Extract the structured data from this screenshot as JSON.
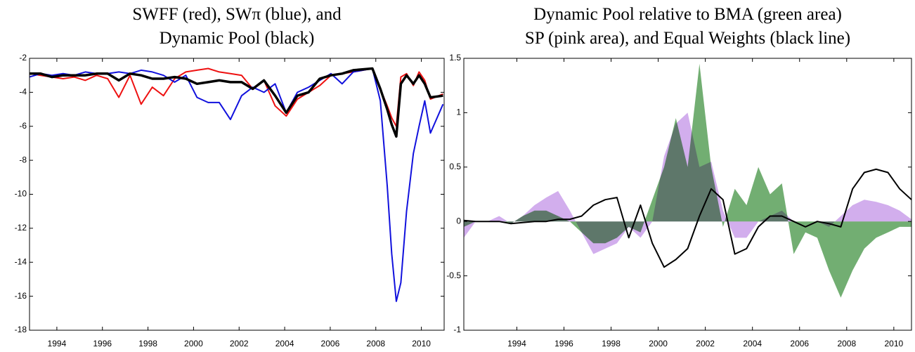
{
  "chart_data": [
    {
      "type": "line",
      "title": [
        "SWFF (red), SWπ (blue), and",
        "Dynamic Pool (black)"
      ],
      "x": [
        1992.8,
        1993.29,
        1993.78,
        1994.27,
        1994.76,
        1995.25,
        1995.74,
        1996.23,
        1996.72,
        1997.21,
        1997.7,
        1998.19,
        1998.68,
        1999.17,
        1999.66,
        2000.15,
        2000.64,
        2001.13,
        2001.62,
        2002.11,
        2002.6,
        2003.09,
        2003.58,
        2004.07,
        2004.56,
        2005.05,
        2005.54,
        2006.03,
        2006.52,
        2007.01,
        2007.85,
        2008.2,
        2008.5,
        2008.7,
        2008.9,
        2009.1,
        2009.35,
        2009.65,
        2009.9,
        2010.15,
        2010.4,
        2010.95
      ],
      "series": [
        {
          "color": "#ee1111",
          "width": 2,
          "values": [
            -2.9,
            -3.0,
            -3.1,
            -3.2,
            -3.1,
            -3.3,
            -3.0,
            -3.2,
            -4.3,
            -3.0,
            -4.7,
            -3.7,
            -4.2,
            -3.2,
            -2.8,
            -2.7,
            -2.6,
            -2.8,
            -2.9,
            -3.0,
            -3.8,
            -3.3,
            -4.8,
            -5.4,
            -4.4,
            -4.0,
            -3.6,
            -3.0,
            -2.9,
            -2.8,
            -2.6,
            -3.8,
            -4.8,
            -5.5,
            -6.0,
            -3.1,
            -2.9,
            -3.6,
            -2.8,
            -3.3,
            -4.4,
            -4.1
          ]
        },
        {
          "color": "#1111dd",
          "width": 2,
          "values": [
            -3.1,
            -2.9,
            -3.0,
            -2.9,
            -3.0,
            -2.8,
            -2.9,
            -2.9,
            -2.8,
            -2.9,
            -2.7,
            -2.8,
            -3.0,
            -3.4,
            -3.0,
            -4.3,
            -4.6,
            -4.6,
            -5.6,
            -4.2,
            -3.7,
            -4.0,
            -3.5,
            -5.2,
            -4.0,
            -3.7,
            -3.3,
            -2.9,
            -3.5,
            -2.8,
            -2.6,
            -4.5,
            -9.5,
            -13.5,
            -16.3,
            -15.2,
            -11.0,
            -7.6,
            -6.0,
            -4.5,
            -6.4,
            -4.7
          ]
        },
        {
          "color": "#000000",
          "width": 3.5,
          "values": [
            -2.9,
            -2.9,
            -3.1,
            -3.0,
            -3.0,
            -3.0,
            -2.9,
            -2.9,
            -3.3,
            -2.9,
            -3.0,
            -3.2,
            -3.2,
            -3.1,
            -3.2,
            -3.5,
            -3.4,
            -3.3,
            -3.4,
            -3.4,
            -3.8,
            -3.3,
            -4.2,
            -5.2,
            -4.2,
            -4.0,
            -3.2,
            -3.0,
            -2.9,
            -2.7,
            -2.6,
            -3.8,
            -5.0,
            -5.9,
            -6.6,
            -3.5,
            -3.0,
            -3.5,
            -3.0,
            -3.5,
            -4.3,
            -4.2
          ]
        }
      ],
      "xlim": [
        1992.8,
        2011
      ],
      "xticks": [
        1994,
        1996,
        1998,
        2000,
        2002,
        2004,
        2006,
        2008,
        2010
      ],
      "ylim": [
        -18,
        -2
      ],
      "yticks": [
        -18,
        -16,
        -14,
        -12,
        -10,
        -8,
        -6,
        -4,
        -2
      ]
    },
    {
      "type": "area",
      "title": [
        "Dynamic Pool relative to BMA (green area)",
        "SP (pink area), and Equal Weights (black line)"
      ],
      "x": [
        1991.75,
        1992.25,
        1992.75,
        1993.25,
        1993.75,
        1994.25,
        1994.75,
        1995.25,
        1995.75,
        1996.25,
        1996.75,
        1997.25,
        1997.75,
        1998.25,
        1998.75,
        1999.25,
        1999.75,
        2000.25,
        2000.75,
        2001.25,
        2001.75,
        2002.25,
        2002.75,
        2003.25,
        2003.75,
        2004.25,
        2004.75,
        2005.25,
        2005.75,
        2006.25,
        2006.75,
        2007.25,
        2007.75,
        2008.25,
        2008.75,
        2009.25,
        2009.75,
        2010.25,
        2010.75
      ],
      "series": [
        {
          "color": "#4f9a4f",
          "style": "area",
          "values": [
            -0.05,
            0,
            0,
            0,
            -0.02,
            0.05,
            0.1,
            0.1,
            0.05,
            0,
            -0.1,
            -0.2,
            -0.2,
            -0.15,
            -0.05,
            -0.1,
            0.2,
            0.5,
            0.95,
            0.5,
            1.45,
            0.5,
            -0.05,
            0.3,
            0.15,
            0.5,
            0.25,
            0.35,
            -0.3,
            -0.1,
            -0.15,
            -0.45,
            -0.7,
            -0.45,
            -0.25,
            -0.15,
            -0.1,
            -0.05,
            -0.05
          ]
        },
        {
          "color": "#c79ae8",
          "style": "area",
          "values": [
            -0.15,
            0,
            0,
            0.05,
            -0.02,
            0.05,
            0.15,
            0.22,
            0.28,
            0.1,
            -0.1,
            -0.3,
            -0.25,
            -0.2,
            -0.05,
            -0.15,
            0,
            0.6,
            0.9,
            1.0,
            0.5,
            0.55,
            0.1,
            -0.15,
            -0.15,
            0,
            0.05,
            0.1,
            0,
            0,
            0,
            -0.05,
            0.05,
            0.15,
            0.2,
            0.18,
            0.15,
            0.1,
            0.02
          ]
        },
        {
          "color": "#000000",
          "style": "line",
          "values": [
            0.01,
            0,
            0,
            0,
            -0.02,
            -0.01,
            0,
            0,
            0.02,
            0.02,
            0.05,
            0.15,
            0.2,
            0.22,
            -0.15,
            0.15,
            -0.2,
            -0.42,
            -0.35,
            -0.25,
            0.05,
            0.3,
            0.2,
            -0.3,
            -0.25,
            -0.05,
            0.05,
            0.05,
            0,
            -0.05,
            0,
            -0.02,
            -0.05,
            0.3,
            0.45,
            0.48,
            0.45,
            0.3,
            0.2
          ]
        }
      ],
      "xlim": [
        1991.75,
        2010.75
      ],
      "xticks": [
        1994,
        1996,
        1998,
        2000,
        2002,
        2004,
        2006,
        2008,
        2010
      ],
      "ylim": [
        -1,
        1.5
      ],
      "yticks": [
        -1,
        -0.5,
        0,
        0.5,
        1,
        1.5
      ]
    }
  ]
}
